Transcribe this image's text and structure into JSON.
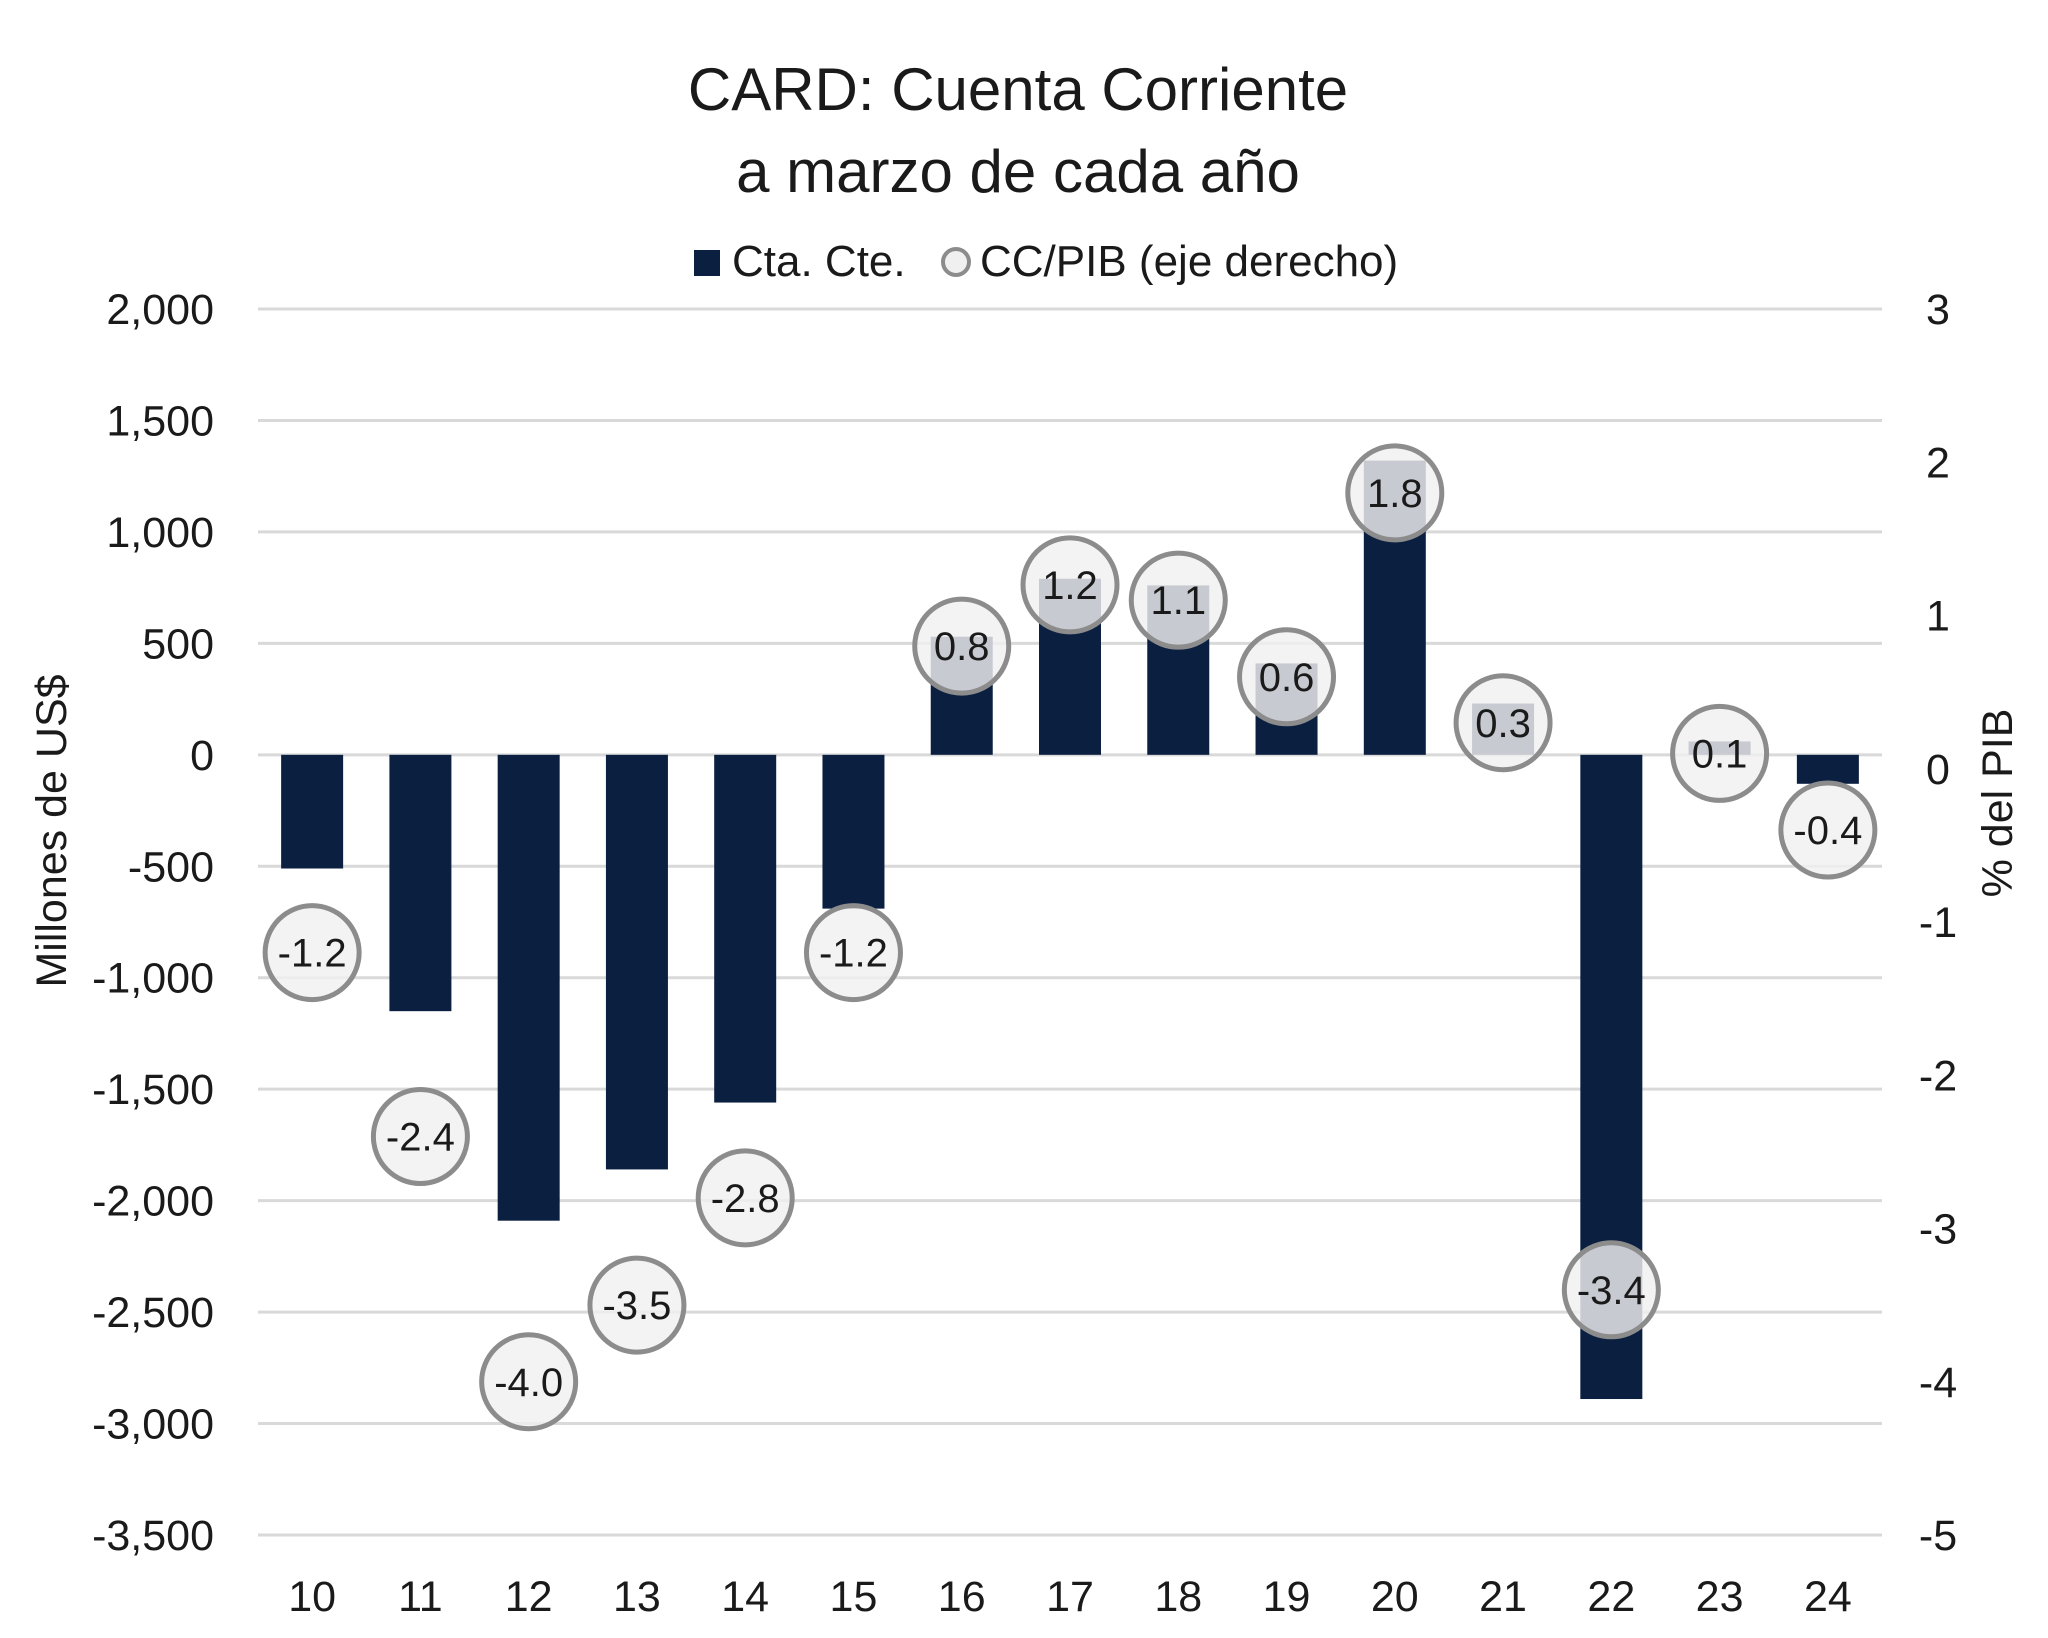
{
  "chart_data": {
    "type": "bar",
    "title": "CARD: Cuenta Corriente",
    "subtitle": "a marzo de cada año",
    "categories": [
      "10",
      "11",
      "12",
      "13",
      "14",
      "15",
      "16",
      "17",
      "18",
      "19",
      "20",
      "21",
      "22",
      "23",
      "24"
    ],
    "series": [
      {
        "name": "Cta. Cte.",
        "type": "bar",
        "axis": "left",
        "color": "#0b1f41",
        "values": [
          -510,
          -1150,
          -2090,
          -1860,
          -1560,
          -690,
          530,
          790,
          760,
          410,
          1320,
          230,
          -2890,
          60,
          -130
        ]
      },
      {
        "name": "CC/PIB (eje derecho)",
        "type": "scatter",
        "axis": "right",
        "marker": "circle",
        "marker_fill": "#f0f0f0",
        "marker_stroke": "#8c8c8c",
        "values": [
          -1.2,
          -2.4,
          -4.0,
          -3.5,
          -2.8,
          -1.2,
          0.8,
          1.2,
          1.1,
          0.6,
          1.8,
          0.3,
          -3.4,
          0.1,
          -0.4
        ],
        "labels": [
          "-1.2",
          "-2.4",
          "-4.0",
          "-3.5",
          "-2.8",
          "-1.2",
          "0.8",
          "1.2",
          "1.1",
          "0.6",
          "1.8",
          "0.3",
          "-3.4",
          "0.1",
          "-0.4"
        ]
      }
    ],
    "ylabel": "Millones de US$",
    "y2label": "% del PIB",
    "ylim": [
      -3500,
      2000
    ],
    "y2lim": [
      -5,
      3
    ],
    "yticks": [
      "2,000",
      "1,500",
      "1,000",
      "500",
      "0",
      "-500",
      "-1,000",
      "-1,500",
      "-2,000",
      "-2,500",
      "-3,000",
      "-3,500"
    ],
    "yticks_values": [
      2000,
      1500,
      1000,
      500,
      0,
      -500,
      -1000,
      -1500,
      -2000,
      -2500,
      -3000,
      -3500
    ],
    "y2ticks": [
      "3",
      "2",
      "1",
      "0",
      "-1",
      "-2",
      "-3",
      "-4",
      "-5"
    ],
    "y2ticks_values": [
      3,
      2,
      1,
      0,
      -1,
      -2,
      -3,
      -4,
      -5
    ],
    "grid": true,
    "legend_position": "top-center",
    "gridline_color": "#d9d9d9"
  }
}
